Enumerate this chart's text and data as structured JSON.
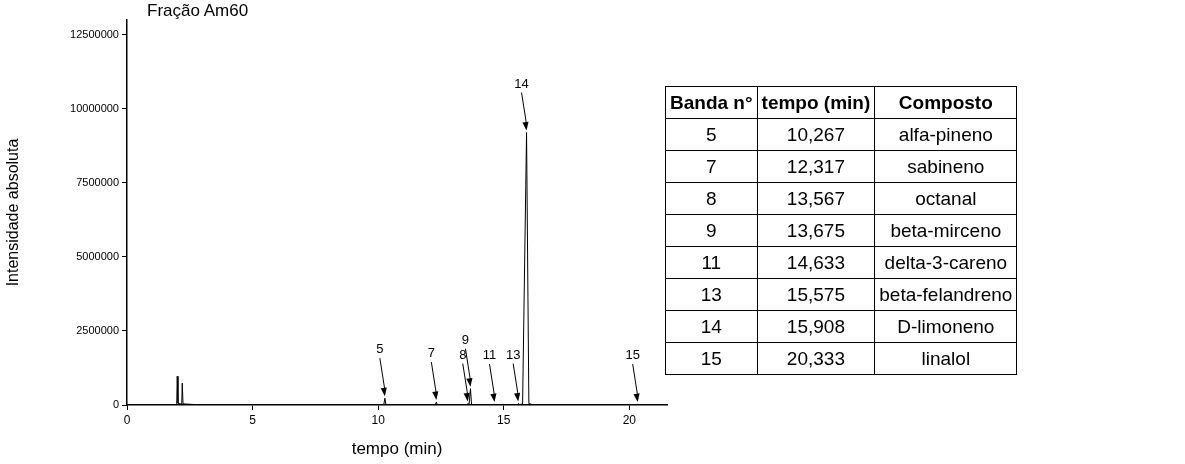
{
  "chart_data": [
    {
      "type": "line",
      "title": "Fração Am60",
      "xlabel": "tempo (min)",
      "ylabel": "Intensidade absoluta",
      "color": "#000000",
      "x": [
        0,
        1.98,
        2.0,
        2.03,
        2.18,
        2.2,
        2.23,
        2.6,
        3,
        10.22,
        10.267,
        10.31,
        12.27,
        12.317,
        12.36,
        13.52,
        13.567,
        13.62,
        13.675,
        13.72,
        14.6,
        14.633,
        14.67,
        15.54,
        15.575,
        15.62,
        15.75,
        15.908,
        16.0,
        16.2,
        20.3,
        20.333,
        20.37,
        21.5
      ],
      "values": [
        0,
        0,
        970000,
        60000,
        30000,
        740000,
        40000,
        20000,
        0,
        0,
        230000,
        0,
        0,
        100000,
        0,
        0,
        50000,
        20000,
        550000,
        0,
        0,
        30000,
        0,
        0,
        50000,
        20000,
        30000,
        9200000,
        50000,
        0,
        0,
        30000,
        0,
        0
      ],
      "xlim": [
        0,
        21.5
      ],
      "xticks": [
        0,
        5,
        10,
        15,
        20
      ],
      "ylim": [
        0,
        13000000
      ],
      "yticks": [
        0,
        2500000,
        5000000,
        7500000,
        10000000,
        12500000
      ],
      "annotations": [
        {
          "text": "5",
          "x": 10.267,
          "y": 230000
        },
        {
          "text": "7",
          "x": 12.317,
          "y": 100000
        },
        {
          "text": "8",
          "x": 13.567,
          "y": 50000
        },
        {
          "text": "9",
          "x": 13.675,
          "y": 550000
        },
        {
          "text": "11",
          "x": 14.633,
          "y": 30000
        },
        {
          "text": "13",
          "x": 15.575,
          "y": 50000
        },
        {
          "text": "14",
          "x": 15.908,
          "y": 9200000
        },
        {
          "text": "15",
          "x": 20.333,
          "y": 30000
        }
      ]
    },
    {
      "type": "other",
      "annotations": [
        "Banda n°",
        "tempo (min)",
        "Composto",
        "5",
        "10,267",
        "alfa-pineno",
        "7",
        "12,317",
        "sabineno",
        "8",
        "13,567",
        "octanal",
        "9",
        "13,675",
        "beta-mirceno",
        "11",
        "14,633",
        "delta-3-careno",
        "13",
        "15,575",
        "beta-felandreno",
        "14",
        "15,908",
        "D-limoneno",
        "15",
        "20,333",
        "linalol"
      ]
    }
  ]
}
